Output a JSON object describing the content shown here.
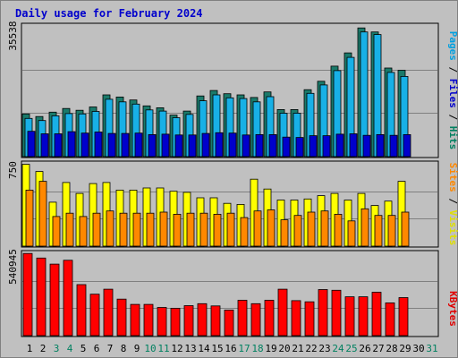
{
  "chart_data": [
    {
      "type": "bar",
      "title": "Daily usage for February 2024",
      "panel": "top",
      "ylabel_parts": [
        {
          "text": "Pages",
          "color": "#00a0e0"
        },
        {
          "text": " / ",
          "color": "#000000"
        },
        {
          "text": "Files",
          "color": "#0000cc"
        },
        {
          "text": " / ",
          "color": "#000000"
        },
        {
          "text": "Hits",
          "color": "#008060"
        }
      ],
      "ymax_label": "35538",
      "ylim": [
        0,
        35538
      ],
      "categories": [
        "1",
        "2",
        "3",
        "4",
        "5",
        "6",
        "7",
        "8",
        "9",
        "10",
        "11",
        "12",
        "13",
        "14",
        "15",
        "16",
        "17",
        "18",
        "19",
        "20",
        "21",
        "22",
        "23",
        "24",
        "25",
        "26",
        "27",
        "28",
        "29",
        "30",
        "31"
      ],
      "series": [
        {
          "name": "Hits",
          "color": "#1a7a6a",
          "values": [
            11600,
            10900,
            12100,
            13100,
            12600,
            13500,
            16800,
            16200,
            15400,
            13800,
            13300,
            11300,
            12400,
            16500,
            18000,
            17100,
            16800,
            16100,
            17600,
            12800,
            12800,
            18200,
            20500,
            24600,
            28200,
            35000,
            33900,
            24100,
            23500,
            null,
            null
          ]
        },
        {
          "name": "Files",
          "color": "#18b0e6",
          "values": [
            10400,
            9800,
            11100,
            11700,
            11600,
            12300,
            15600,
            14900,
            14300,
            12700,
            12400,
            10600,
            11500,
            15200,
            16800,
            16000,
            15800,
            14900,
            16300,
            11800,
            11800,
            17200,
            19500,
            23400,
            27000,
            33900,
            33200,
            22900,
            21800,
            null,
            null
          ]
        },
        {
          "name": "Pages",
          "color": "#0000cc",
          "values": [
            6900,
            6200,
            6200,
            6800,
            6400,
            6700,
            6300,
            6300,
            6400,
            6000,
            6100,
            5900,
            5900,
            6300,
            6500,
            6400,
            5900,
            6000,
            6000,
            5300,
            5200,
            5700,
            5700,
            6100,
            6200,
            5800,
            6000,
            5800,
            6000,
            null,
            null
          ]
        }
      ]
    },
    {
      "type": "bar",
      "panel": "middle",
      "ylabel_parts": [
        {
          "text": "Sites",
          "color": "#ff8800"
        },
        {
          "text": " / ",
          "color": "#000000"
        },
        {
          "text": "Visits",
          "color": "#e0e000"
        }
      ],
      "ymax_label": "750",
      "ylim": [
        0,
        750
      ],
      "categories": [
        "1",
        "2",
        "3",
        "4",
        "5",
        "6",
        "7",
        "8",
        "9",
        "10",
        "11",
        "12",
        "13",
        "14",
        "15",
        "16",
        "17",
        "18",
        "19",
        "20",
        "21",
        "22",
        "23",
        "24",
        "25",
        "26",
        "27",
        "28",
        "29",
        "30",
        "31"
      ],
      "series": [
        {
          "name": "Visits",
          "color": "#ffff00",
          "values": [
            745,
            680,
            400,
            580,
            480,
            570,
            580,
            510,
            510,
            530,
            530,
            500,
            490,
            440,
            440,
            390,
            380,
            610,
            520,
            420,
            420,
            430,
            460,
            480,
            420,
            480,
            370,
            410,
            590,
            null,
            null
          ]
        },
        {
          "name": "Sites",
          "color": "#ff8800",
          "values": [
            510,
            590,
            270,
            300,
            270,
            300,
            320,
            300,
            300,
            300,
            310,
            290,
            300,
            300,
            290,
            300,
            260,
            320,
            330,
            240,
            280,
            310,
            320,
            290,
            230,
            340,
            280,
            280,
            310,
            null,
            null
          ]
        }
      ]
    },
    {
      "type": "bar",
      "panel": "bottom",
      "ylabel_parts": [
        {
          "text": "KBytes",
          "color": "#e00000"
        }
      ],
      "ymax_label": "540945",
      "ylim": [
        0,
        540945
      ],
      "categories": [
        "1",
        "2",
        "3",
        "4",
        "5",
        "6",
        "7",
        "8",
        "9",
        "10",
        "11",
        "12",
        "13",
        "14",
        "15",
        "16",
        "17",
        "18",
        "19",
        "20",
        "21",
        "22",
        "23",
        "24",
        "25",
        "26",
        "27",
        "28",
        "29",
        "30",
        "31"
      ],
      "series": [
        {
          "name": "KBytes",
          "color": "#ff0000",
          "values": [
            540000,
            510000,
            470000,
            495000,
            335000,
            272000,
            305000,
            240000,
            205000,
            205000,
            185000,
            180000,
            197000,
            210000,
            195000,
            168000,
            232000,
            210000,
            232000,
            305000,
            230000,
            222000,
            303000,
            298000,
            255000,
            255000,
            285000,
            215000,
            250000,
            null,
            null
          ]
        }
      ]
    }
  ],
  "x_weekend_color": "#008060",
  "x_weekday_color": "#000000",
  "x_weekend_days": [
    "3",
    "4",
    "10",
    "11",
    "17",
    "18",
    "24",
    "25",
    "31"
  ]
}
